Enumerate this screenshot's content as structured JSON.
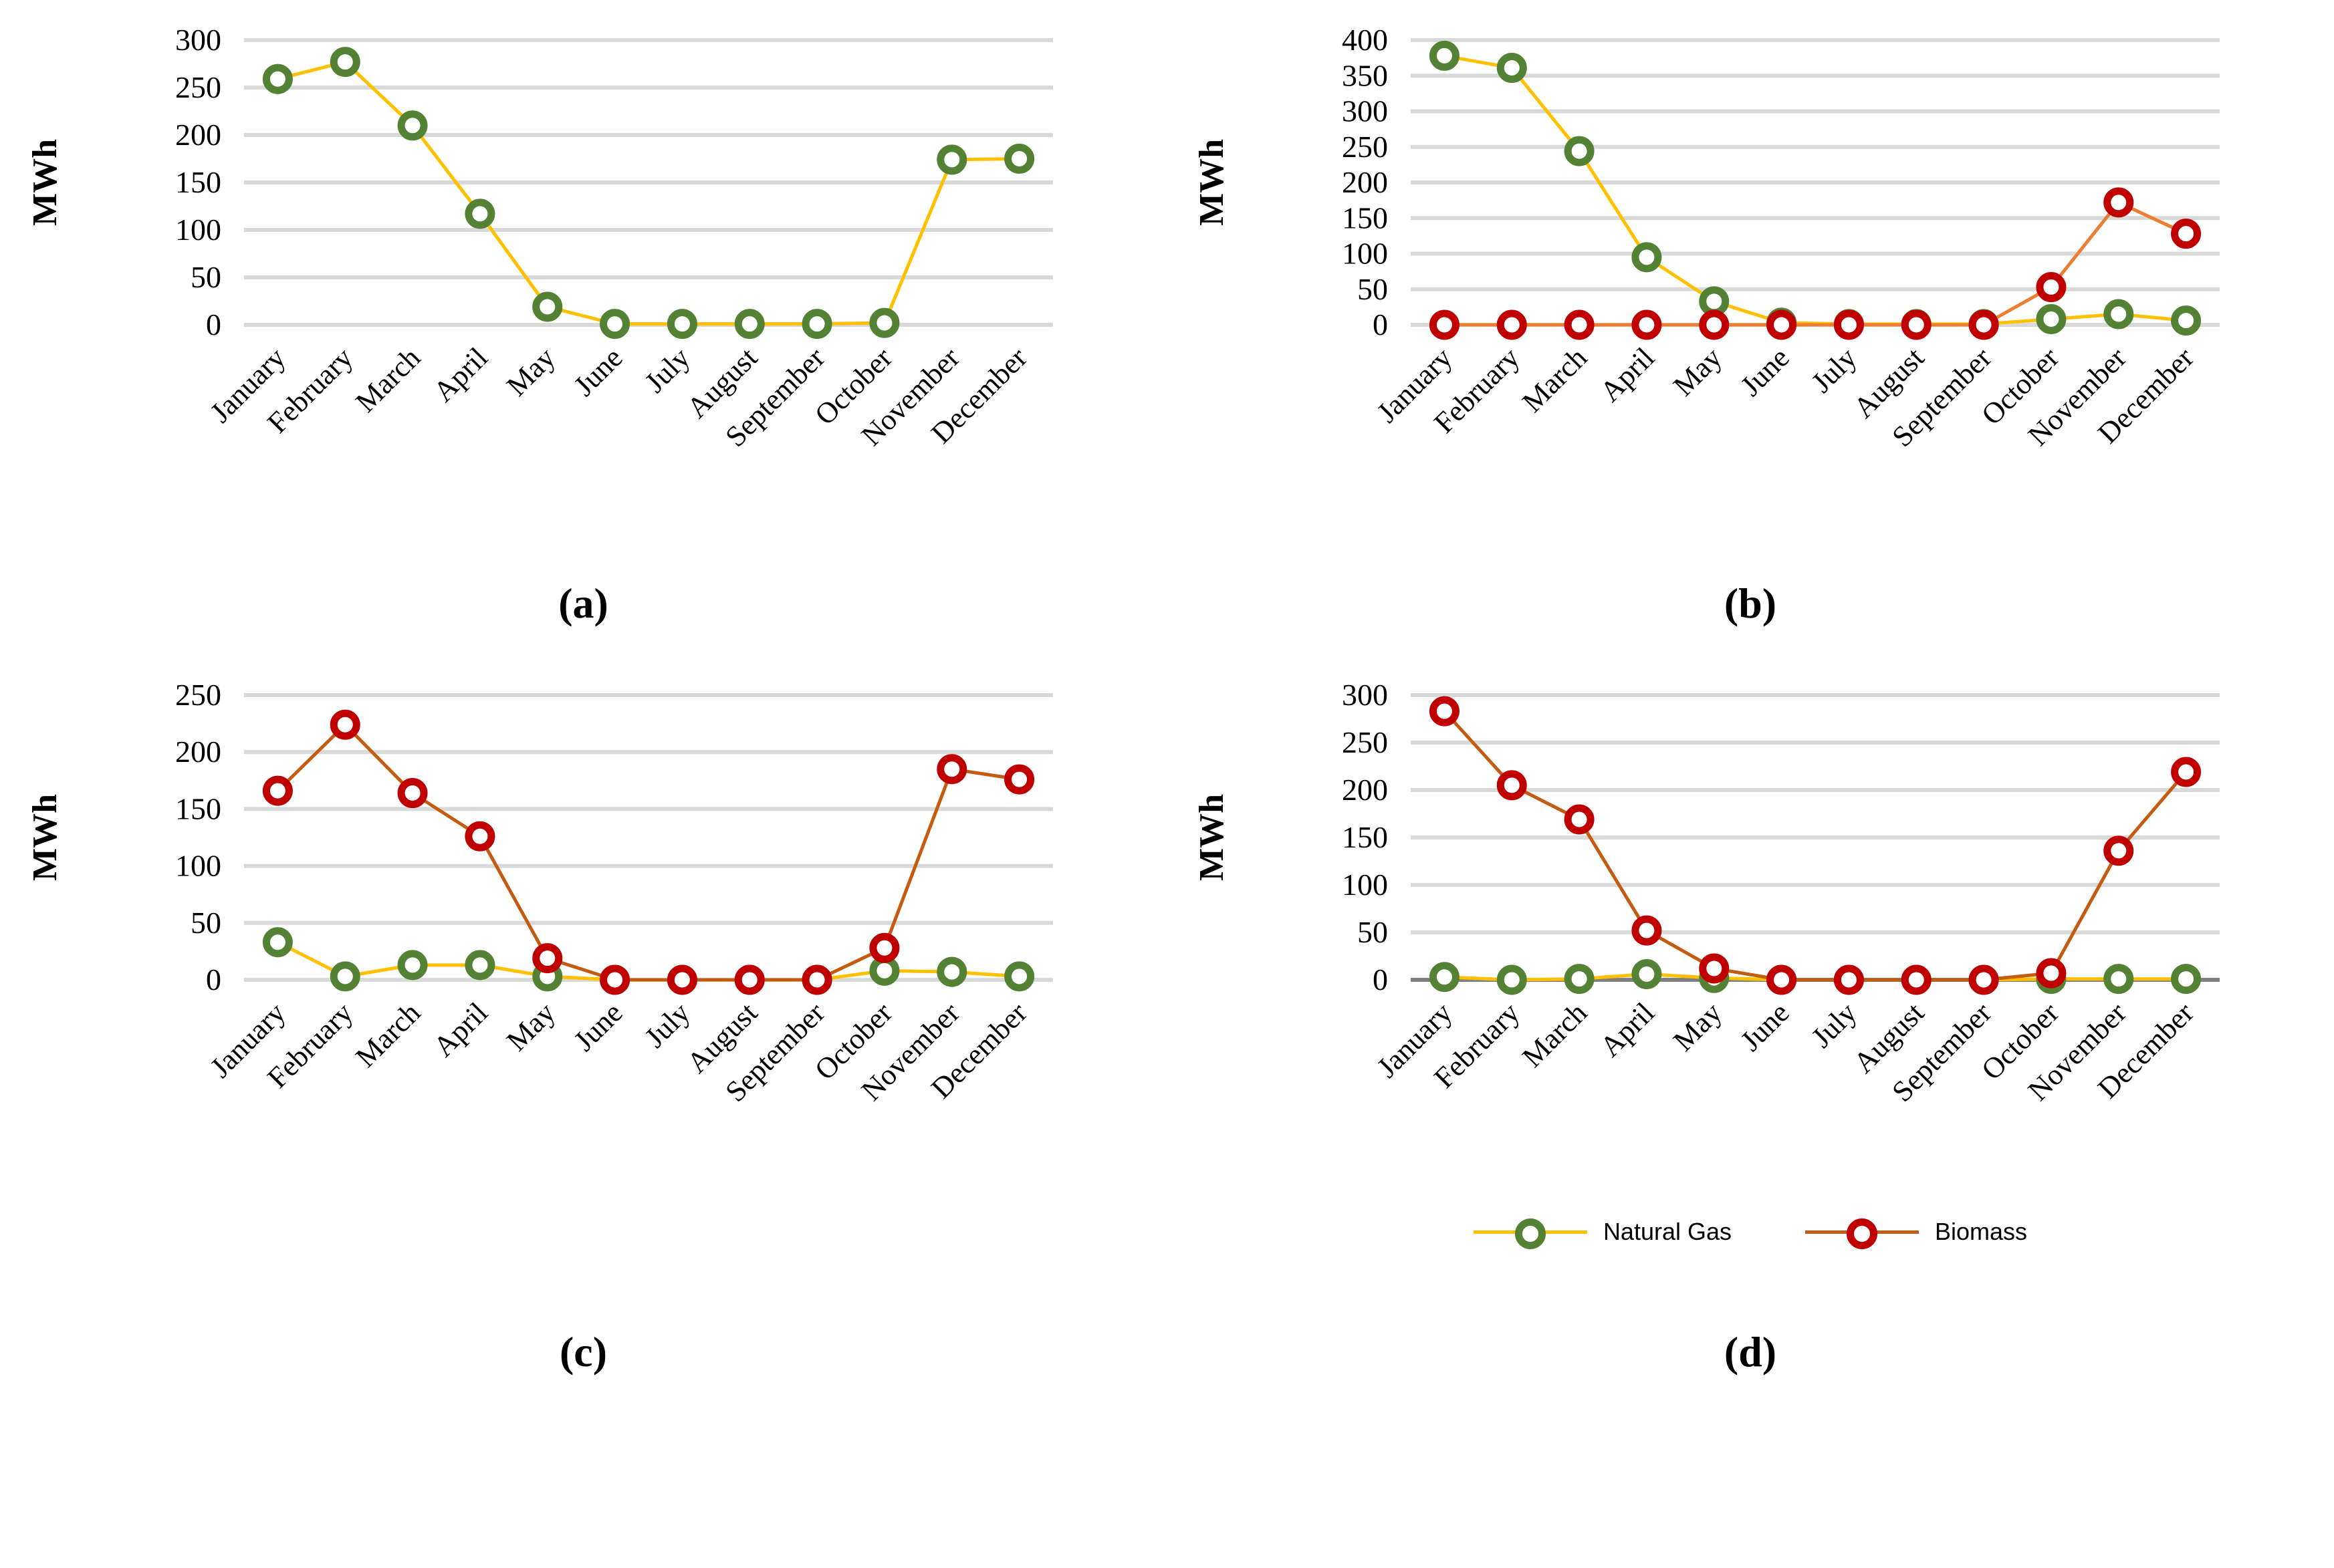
{
  "figure_type": "four-panel monthly energy line charts",
  "colors": {
    "natural_gas_line": "#FFC000",
    "natural_gas_marker": "#548235",
    "biomass_marker": "#C00000",
    "biomass_line_light": "#ED7D31",
    "biomass_line_dark": "#C55A11",
    "gridline": "#D9D9D9",
    "zero_axis": "#808080",
    "text": "#000000"
  },
  "legend": {
    "position": "bottom-of-panel-d",
    "items": [
      {
        "key": "natural_gas",
        "label": "Natural Gas",
        "line_color": "#FFC000",
        "marker_color": "#548235"
      },
      {
        "key": "biomass",
        "label": "Biomass",
        "line_color": "#C55A11",
        "marker_color": "#C00000"
      }
    ]
  },
  "chart_data": [
    {
      "type": "line",
      "panel_label": "(a)",
      "ylabel": "MWh",
      "ylim": [
        0,
        300
      ],
      "yticks": [
        0,
        50,
        100,
        150,
        200,
        250,
        300
      ],
      "grid": true,
      "zero_axis_dark": false,
      "legend": false,
      "categories": [
        "January",
        "February",
        "March",
        "April",
        "May",
        "June",
        "July",
        "August",
        "September",
        "October",
        "November",
        "December"
      ],
      "series": [
        {
          "name": "Natural Gas",
          "key": "natural_gas",
          "line_color": "#FFC000",
          "marker_color": "#548235",
          "values": [
            259,
            277,
            210,
            117,
            19,
            1,
            1,
            1,
            1,
            2,
            174,
            175
          ]
        }
      ]
    },
    {
      "type": "line",
      "panel_label": "(b)",
      "ylabel": "MWh",
      "ylim": [
        0,
        400
      ],
      "yticks": [
        0,
        50,
        100,
        150,
        200,
        250,
        300,
        350,
        400
      ],
      "grid": true,
      "zero_axis_dark": false,
      "legend": false,
      "categories": [
        "January",
        "February",
        "March",
        "April",
        "May",
        "June",
        "July",
        "August",
        "September",
        "October",
        "November",
        "December"
      ],
      "series": [
        {
          "name": "Natural Gas",
          "key": "natural_gas",
          "line_color": "#FFC000",
          "marker_color": "#548235",
          "values": [
            378,
            361,
            244,
            95,
            33,
            3,
            1,
            1,
            1,
            8,
            15,
            6
          ]
        },
        {
          "name": "Biomass",
          "key": "biomass",
          "line_color": "#ED7D31",
          "marker_color": "#C00000",
          "values": [
            0,
            0,
            0,
            0,
            0,
            0,
            0,
            0,
            0,
            53,
            172,
            128
          ]
        }
      ]
    },
    {
      "type": "line",
      "panel_label": "(c)",
      "ylabel": "MWh",
      "ylim": [
        0,
        250
      ],
      "yticks": [
        0,
        50,
        100,
        150,
        200,
        250
      ],
      "grid": true,
      "zero_axis_dark": false,
      "legend": false,
      "categories": [
        "January",
        "February",
        "March",
        "April",
        "May",
        "June",
        "July",
        "August",
        "September",
        "October",
        "November",
        "December"
      ],
      "series": [
        {
          "name": "Natural Gas",
          "key": "natural_gas",
          "line_color": "#FFC000",
          "marker_color": "#548235",
          "values": [
            33,
            3,
            13,
            13,
            3,
            0,
            0,
            0,
            0,
            8,
            7,
            3
          ]
        },
        {
          "name": "Biomass",
          "key": "biomass",
          "line_color": "#C55A11",
          "marker_color": "#C00000",
          "values": [
            166,
            224,
            164,
            126,
            19,
            0,
            0,
            0,
            0,
            28,
            185,
            176
          ]
        }
      ]
    },
    {
      "type": "line",
      "panel_label": "(d)",
      "ylabel": "MWh",
      "ylim": [
        0,
        300
      ],
      "yticks": [
        0,
        50,
        100,
        150,
        200,
        250,
        300
      ],
      "grid": true,
      "zero_axis_dark": true,
      "legend": true,
      "categories": [
        "January",
        "February",
        "March",
        "April",
        "May",
        "June",
        "July",
        "August",
        "September",
        "October",
        "November",
        "December"
      ],
      "series": [
        {
          "name": "Natural Gas",
          "key": "natural_gas",
          "line_color": "#FFC000",
          "marker_color": "#548235",
          "values": [
            3,
            0,
            1,
            6,
            2,
            0,
            0,
            0,
            0,
            1,
            1,
            1
          ]
        },
        {
          "name": "Biomass",
          "key": "biomass",
          "line_color": "#C55A11",
          "marker_color": "#C00000",
          "values": [
            283,
            205,
            169,
            52,
            12,
            0,
            0,
            0,
            0,
            7,
            136,
            219
          ]
        }
      ]
    }
  ]
}
